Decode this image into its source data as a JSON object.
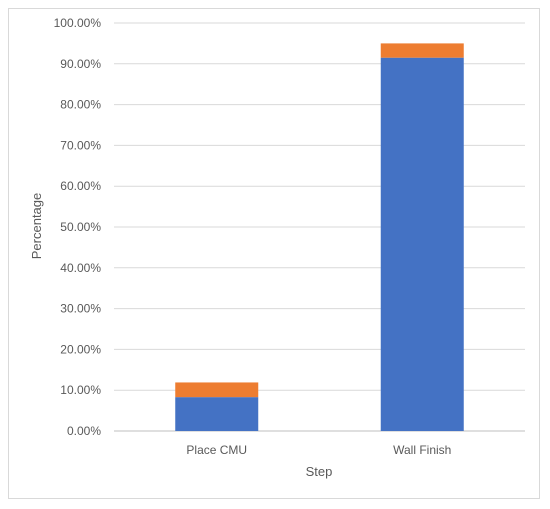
{
  "chart_data": {
    "type": "bar",
    "stacked": true,
    "title": "",
    "xlabel": "Step",
    "ylabel": "Percentage",
    "categories": [
      "Place CMU",
      "Wall Finish"
    ],
    "series": [
      {
        "values": [
          0.083,
          0.915
        ],
        "color": "#4472c4"
      },
      {
        "values": [
          0.036,
          0.035
        ],
        "color": "#ed7d31"
      }
    ],
    "ylim": [
      0,
      1.0
    ],
    "yticks": [
      "0.00%",
      "10.00%",
      "20.00%",
      "30.00%",
      "40.00%",
      "50.00%",
      "60.00%",
      "70.00%",
      "80.00%",
      "90.00%",
      "100.00%"
    ],
    "grid": true,
    "legend": "none",
    "gridline_color": "#d9d9d9",
    "axis_color": "#bfbfbf"
  }
}
